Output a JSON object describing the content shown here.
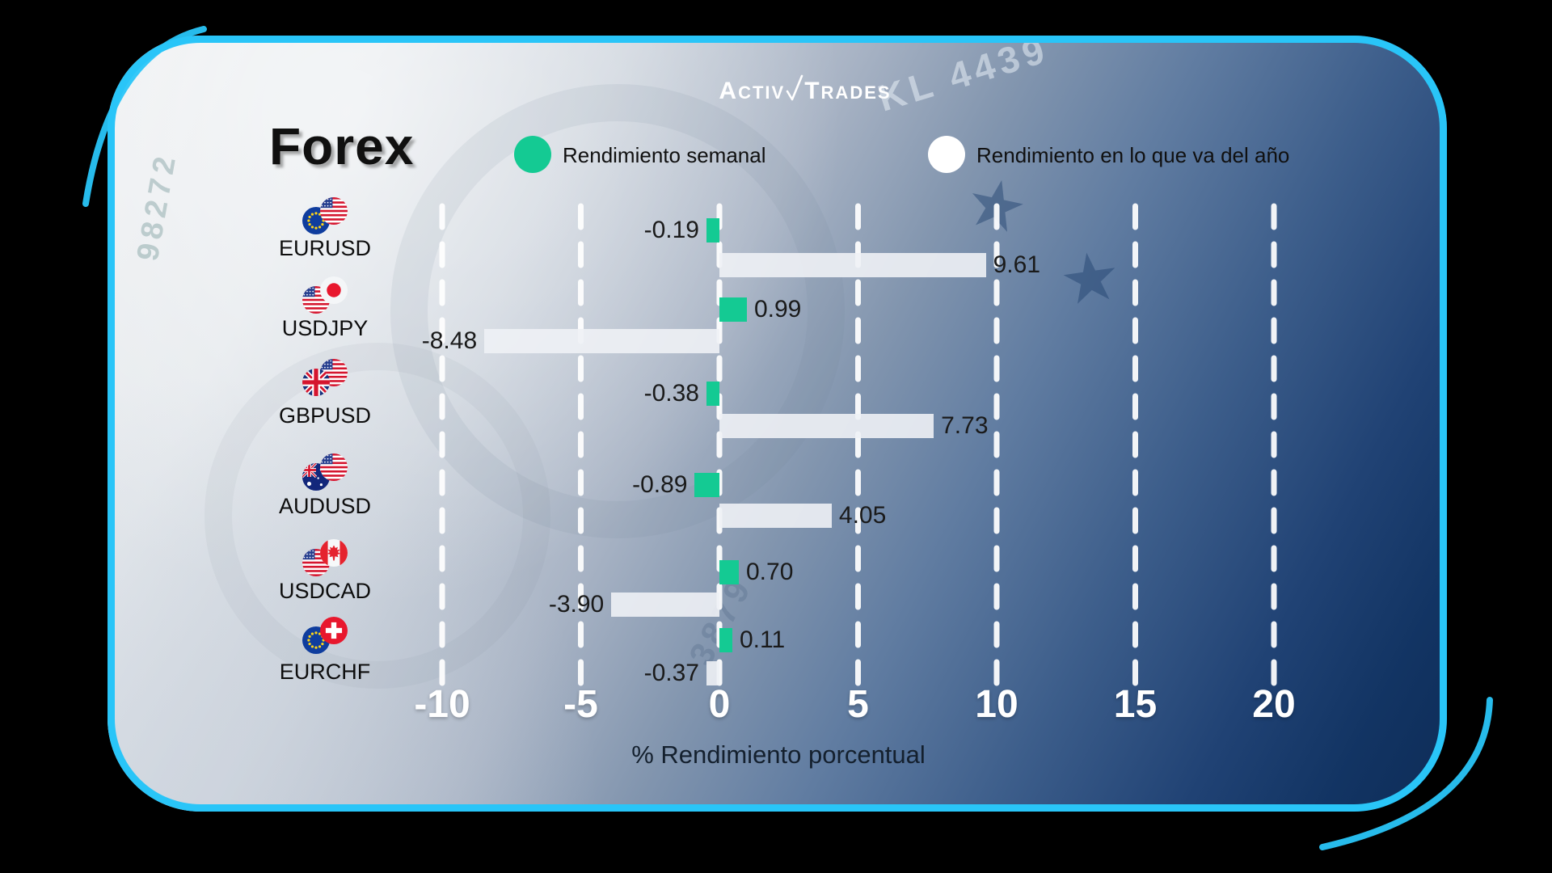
{
  "brand": {
    "name": "ActivTrades",
    "logo_left": "Activ",
    "logo_right": "Trades"
  },
  "title": "Forex",
  "legend": {
    "weekly": {
      "label": "Rendimiento semanal",
      "color": "#14ca93"
    },
    "ytd": {
      "label": "Rendimiento en lo que va del año",
      "color": "#ffffff"
    }
  },
  "chart_data": {
    "type": "bar",
    "orientation": "horizontal",
    "categories": [
      "EURUSD",
      "USDJPY",
      "GBPUSD",
      "AUDUSD",
      "USDCAD",
      "EURCHF"
    ],
    "series": [
      {
        "name": "Rendimiento semanal",
        "color": "#14ca93",
        "values": [
          -0.19,
          0.99,
          -0.38,
          -0.89,
          0.7,
          0.11
        ]
      },
      {
        "name": "Rendimiento en lo que va del año",
        "color": "rgba(238,241,245,0.90)",
        "values": [
          9.61,
          -8.48,
          7.73,
          4.05,
          -3.9,
          -0.37
        ]
      }
    ],
    "xlabel": "% Rendimiento porcentual",
    "xticks": [
      -10,
      -5,
      0,
      5,
      10,
      15,
      20
    ],
    "xlim": [
      -12.6,
      22.6
    ],
    "grid": "dashed-vertical-white",
    "legend_position": "top"
  },
  "pairs": [
    {
      "label": "EURUSD",
      "flags": [
        "eu",
        "us"
      ],
      "front": 1
    },
    {
      "label": "USDJPY",
      "flags": [
        "us",
        "jp"
      ],
      "front": 1
    },
    {
      "label": "GBPUSD",
      "flags": [
        "gb",
        "us"
      ],
      "front": 0
    },
    {
      "label": "AUDUSD",
      "flags": [
        "au",
        "us"
      ],
      "front": 1
    },
    {
      "label": "USDCAD",
      "flags": [
        "us",
        "ca"
      ],
      "front": 1
    },
    {
      "label": "EURCHF",
      "flags": [
        "eu",
        "ch"
      ],
      "front": 1
    }
  ],
  "axis": {
    "tick_labels": [
      "-10",
      "-5",
      "0",
      "5",
      "10",
      "15",
      "20"
    ],
    "title": "% Rendimiento porcentual"
  },
  "decor_text": [
    {
      "text": "KL 4439"
    },
    {
      "text": "3879"
    },
    {
      "text": "98272"
    }
  ],
  "colors": {
    "card_border": "#29c5f8",
    "bar_weekly": "#14ca93",
    "bar_ytd": "#eef1f5",
    "outer_background": "#000000"
  }
}
